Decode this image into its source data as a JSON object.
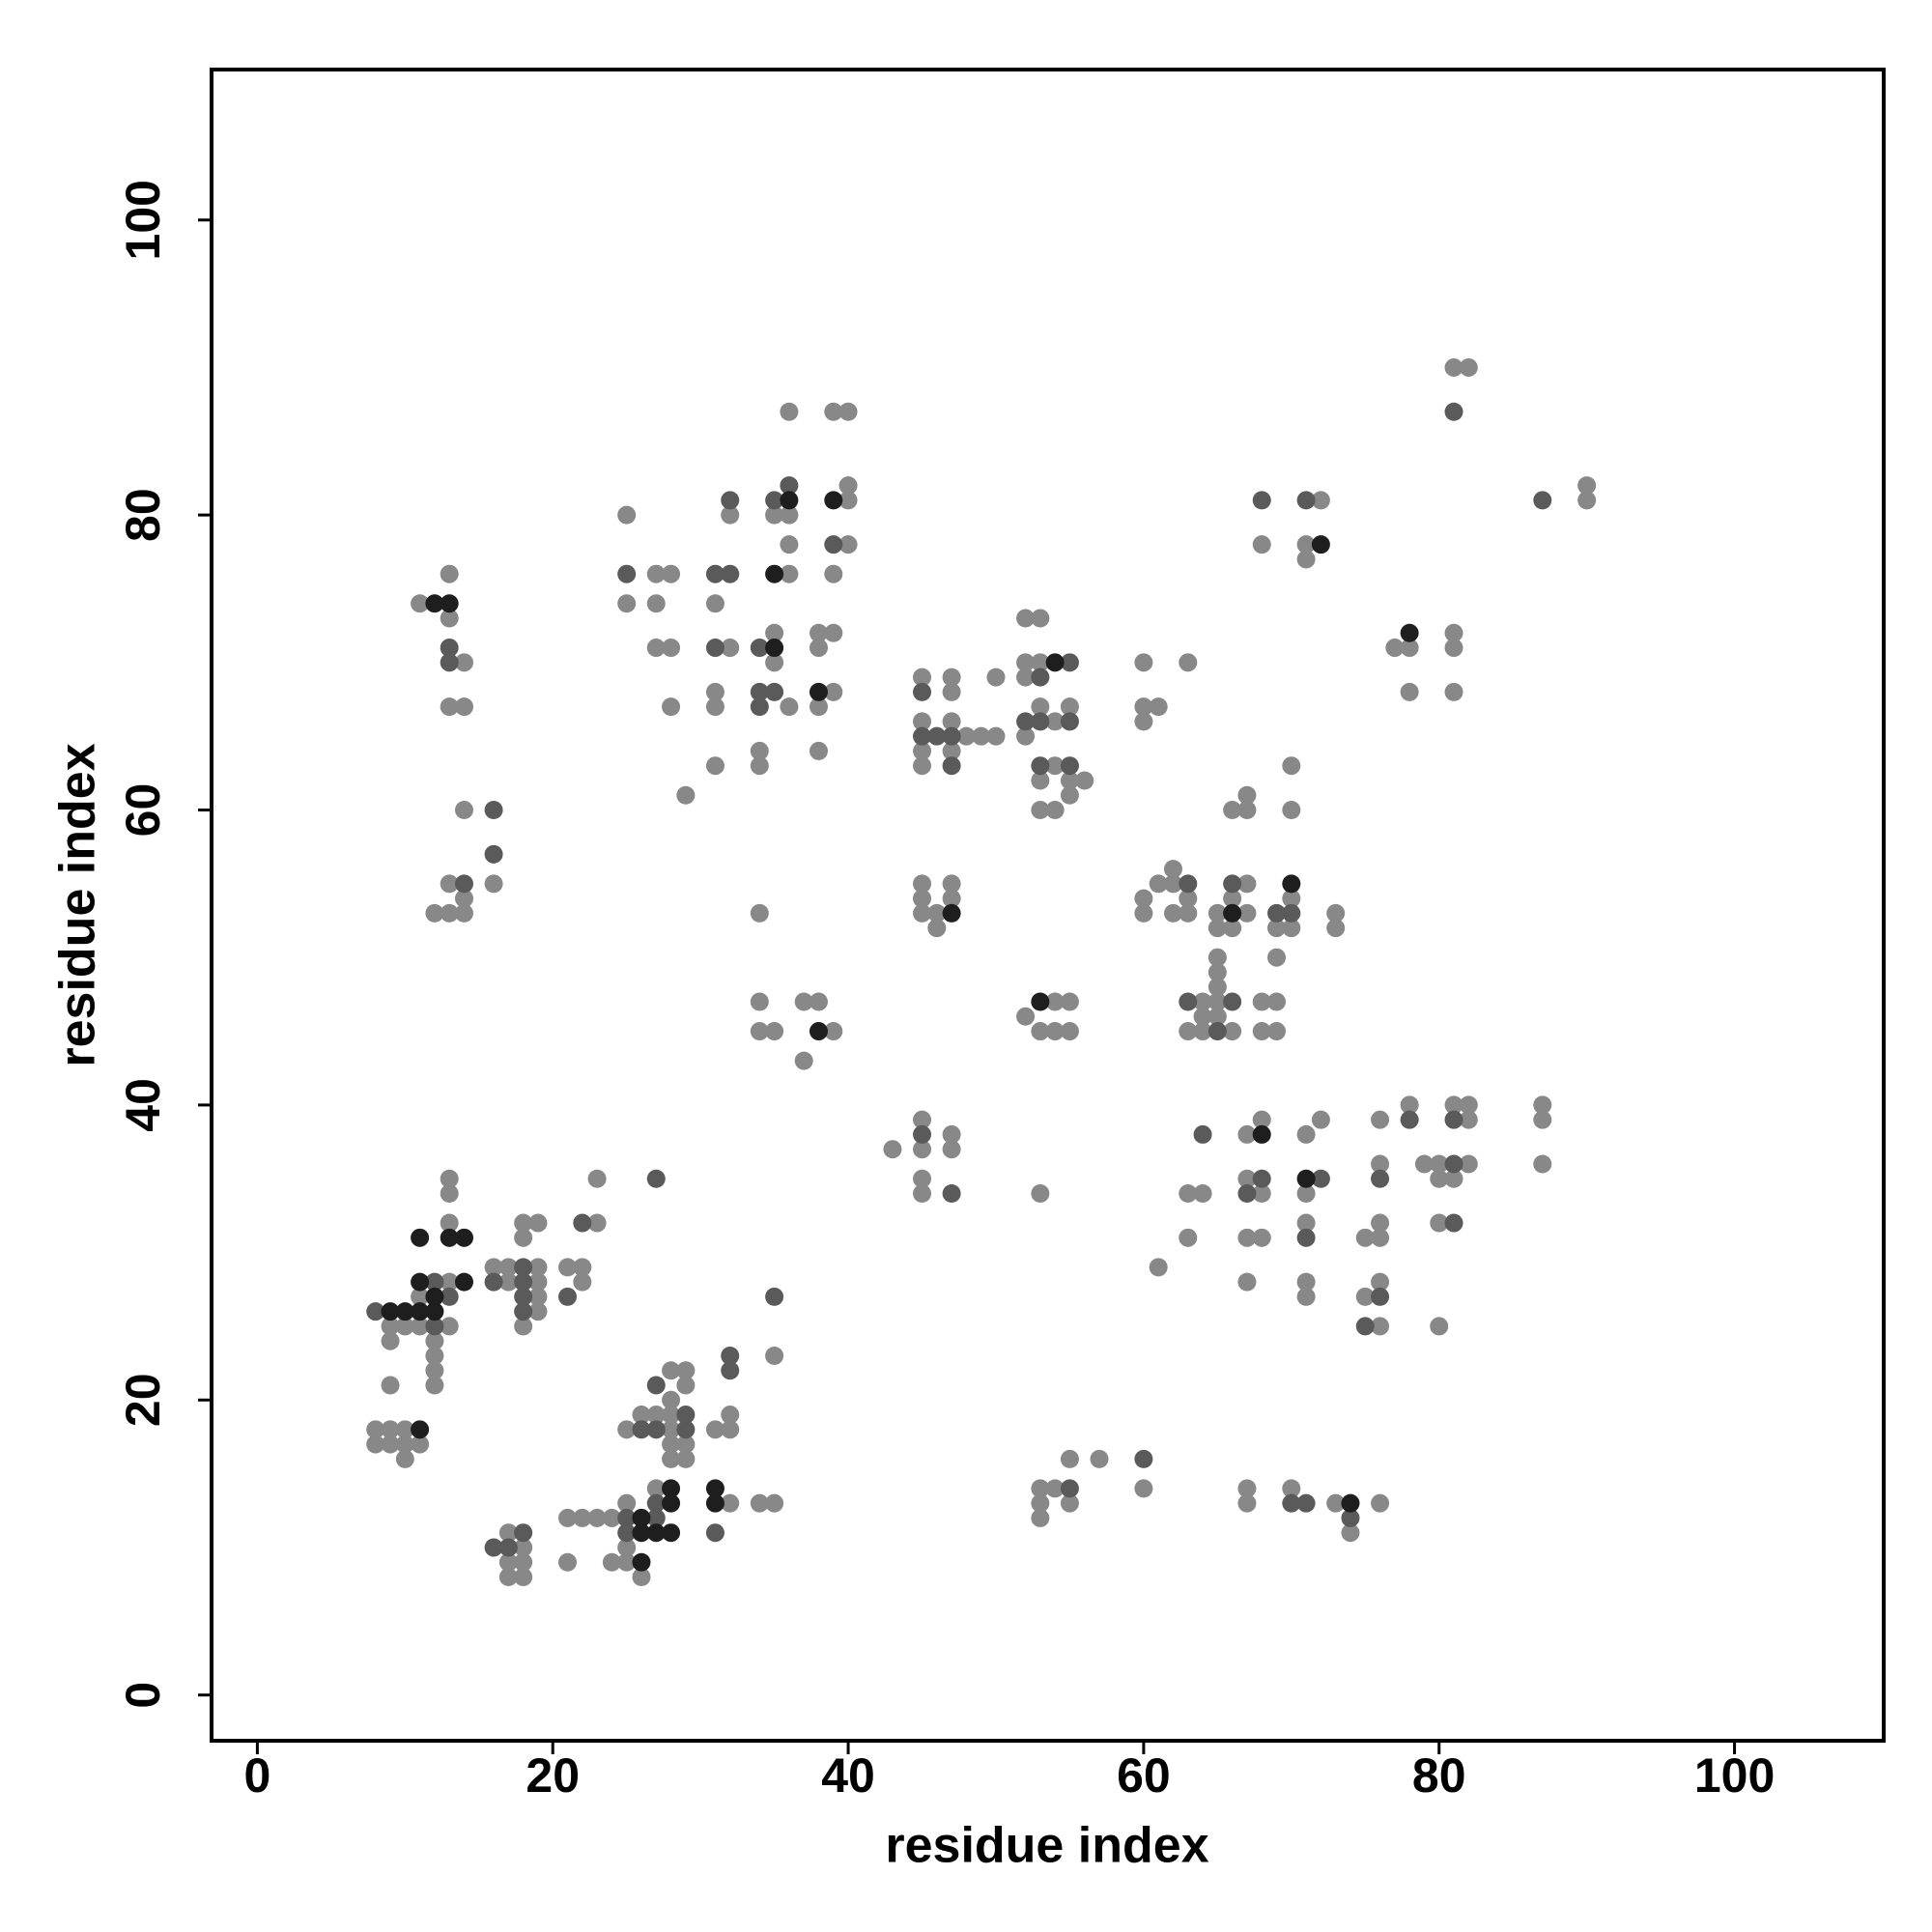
{
  "chart_data": {
    "type": "scatter",
    "xlabel": "residue index",
    "ylabel": "residue index",
    "xlim": [
      -3.1,
      110.1
    ],
    "ylim": [
      -3.1,
      110.2
    ],
    "xticks": [
      0,
      20,
      40,
      60,
      80,
      100
    ],
    "yticks": [
      0,
      20,
      40,
      60,
      80,
      100
    ],
    "series": [
      {
        "color": "#888888",
        "x": [
          9,
          10,
          11,
          13,
          11,
          13,
          9,
          12,
          12,
          12,
          12,
          9,
          13,
          13,
          13,
          8,
          9,
          10,
          8,
          9,
          10,
          11,
          10,
          17,
          16,
          19,
          17,
          19,
          19,
          19,
          18,
          18,
          18,
          19,
          21,
          22,
          22,
          23,
          23,
          17,
          17,
          18,
          17,
          18,
          18,
          21,
          21,
          22,
          23,
          24,
          24,
          25,
          25,
          25,
          26,
          27,
          25,
          28,
          26,
          27,
          28,
          28,
          29,
          28,
          29,
          28,
          29,
          28,
          29,
          32,
          31,
          32,
          32,
          34,
          35,
          35,
          11,
          13,
          13,
          13,
          14,
          14,
          14,
          13,
          16,
          14,
          12,
          13,
          14,
          25,
          25,
          27,
          28,
          36,
          39,
          27,
          31,
          27,
          28,
          32,
          38,
          35,
          38,
          39,
          28,
          31,
          36,
          38,
          31,
          39,
          31,
          34,
          34,
          38,
          29,
          40,
          35,
          36,
          32,
          40,
          36,
          40,
          36,
          39,
          40,
          35,
          34,
          34,
          37,
          38,
          34,
          35,
          39,
          37,
          45,
          47,
          50,
          47,
          45,
          47,
          48,
          49,
          50,
          45,
          47,
          45,
          45,
          47,
          45,
          47,
          45,
          46,
          46,
          52,
          53,
          52,
          53,
          52,
          53,
          55,
          54,
          52,
          54,
          53,
          55,
          56,
          55,
          53,
          54,
          54,
          55,
          52,
          53,
          54,
          55,
          45,
          47,
          43,
          45,
          47,
          45,
          45,
          53,
          55,
          57,
          53,
          54,
          60,
          53,
          55,
          53,
          60,
          63,
          60,
          61,
          60,
          62,
          61,
          62,
          67,
          60,
          63,
          66,
          70,
          60,
          62,
          63,
          65,
          67,
          73,
          65,
          66,
          69,
          70,
          73,
          65,
          69,
          65,
          65,
          64,
          65,
          68,
          69,
          64,
          65,
          63,
          64,
          66,
          68,
          69,
          66,
          67,
          70,
          67,
          70,
          67,
          71,
          72,
          68,
          76,
          67,
          63,
          64,
          68,
          71,
          63,
          67,
          68,
          75,
          76,
          71,
          76,
          67,
          71,
          76,
          71,
          75,
          76,
          80,
          61,
          76,
          79,
          80,
          82,
          87,
          78,
          81,
          82,
          87,
          82,
          87,
          80,
          81,
          80,
          67,
          70,
          67,
          73,
          76,
          74,
          72,
          90,
          68,
          71,
          71,
          90,
          81,
          82,
          81,
          77,
          78,
          81,
          78,
          81
        ],
        "values": [
          25,
          25,
          25,
          25,
          27,
          28,
          24,
          24,
          23,
          22,
          21,
          21,
          32,
          34,
          35,
          18,
          18,
          18,
          17,
          17,
          17,
          17,
          16,
          29,
          29,
          29,
          28,
          28,
          27,
          26,
          25,
          31,
          32,
          32,
          29,
          29,
          28,
          32,
          35,
          11,
          9,
          9,
          8,
          8,
          10,
          9,
          12,
          12,
          12,
          12,
          9,
          9,
          10,
          13,
          8,
          14,
          18,
          18,
          19,
          19,
          19,
          17,
          17,
          16,
          16,
          20,
          21,
          22,
          22,
          13,
          18,
          18,
          19,
          13,
          13,
          23,
          74,
          76,
          73,
          67,
          67,
          70,
          60,
          55,
          55,
          54,
          53,
          53,
          53,
          80,
          74,
          76,
          76,
          76,
          76,
          74,
          74,
          71,
          71,
          71,
          71,
          72,
          72,
          72,
          67,
          67,
          67,
          67,
          68,
          68,
          63,
          63,
          64,
          64,
          61,
          81,
          80,
          80,
          80,
          82,
          78,
          78,
          87,
          87,
          87,
          70,
          53,
          47,
          47,
          47,
          45,
          45,
          45,
          43,
          69,
          69,
          69,
          68,
          66,
          66,
          65,
          65,
          65,
          64,
          64,
          63,
          55,
          55,
          54,
          54,
          53,
          53,
          52,
          73,
          73,
          70,
          70,
          69,
          67,
          67,
          66,
          65,
          63,
          62,
          62,
          62,
          61,
          60,
          60,
          47,
          47,
          46,
          45,
          45,
          45,
          39,
          38,
          37,
          37,
          37,
          35,
          34,
          34,
          16,
          16,
          14,
          14,
          14,
          13,
          13,
          12,
          70,
          70,
          67,
          67,
          66,
          56,
          55,
          55,
          55,
          54,
          54,
          54,
          54,
          53,
          53,
          53,
          53,
          53,
          53,
          52,
          52,
          52,
          52,
          52,
          50,
          50,
          49,
          48,
          47,
          47,
          47,
          47,
          46,
          46,
          45,
          45,
          45,
          45,
          45,
          60,
          60,
          60,
          61,
          63,
          38,
          38,
          39,
          39,
          39,
          35,
          34,
          34,
          34,
          34,
          31,
          31,
          31,
          31,
          31,
          32,
          32,
          28,
          28,
          28,
          27,
          27,
          25,
          25,
          29,
          36,
          36,
          36,
          36,
          36,
          40,
          40,
          40,
          40,
          39,
          39,
          35,
          35,
          32,
          14,
          14,
          13,
          13,
          13,
          11,
          81,
          81,
          78,
          78,
          77,
          82,
          90,
          90,
          72,
          71,
          71,
          71,
          68,
          68
        ]
      },
      {
        "color": "#5a5a5a",
        "x": [
          8,
          12,
          13,
          12,
          13,
          13,
          14,
          16,
          16,
          16,
          18,
          18,
          18,
          18,
          21,
          22,
          17,
          18,
          16,
          25,
          27,
          25,
          27,
          27,
          26,
          27,
          29,
          29,
          32,
          32,
          31,
          27,
          35,
          31,
          34,
          34,
          35,
          34,
          32,
          35,
          36,
          39,
          31,
          32,
          25,
          45,
          47,
          46,
          45,
          47,
          45,
          47,
          53,
          53,
          53,
          55,
          55,
          55,
          52,
          63,
          63,
          65,
          66,
          66,
          69,
          70,
          64,
          67,
          68,
          71,
          72,
          76,
          75,
          76,
          81,
          81,
          81,
          78,
          68,
          71,
          81,
          87,
          55,
          60,
          70,
          71,
          74
        ],
        "values": [
          26,
          25,
          27,
          28,
          71,
          70,
          55,
          60,
          57,
          28,
          29,
          27,
          26,
          28,
          27,
          32,
          10,
          11,
          10,
          12,
          12,
          11,
          13,
          21,
          18,
          18,
          19,
          18,
          23,
          22,
          11,
          35,
          27,
          71,
          71,
          67,
          68,
          68,
          81,
          81,
          82,
          78,
          76,
          76,
          76,
          65,
          65,
          65,
          68,
          63,
          38,
          34,
          69,
          66,
          63,
          70,
          63,
          66,
          66,
          55,
          47,
          45,
          47,
          55,
          53,
          53,
          38,
          34,
          35,
          31,
          35,
          35,
          25,
          27,
          36,
          39,
          32,
          39,
          81,
          81,
          87,
          81,
          14,
          16,
          13,
          13,
          12
        ]
      },
      {
        "color": "#1e1e1e",
        "x": [
          9,
          10,
          11,
          12,
          11,
          13,
          14,
          11,
          12,
          14,
          12,
          13,
          11,
          26,
          27,
          28,
          28,
          28,
          31,
          31,
          26,
          26,
          35,
          35,
          36,
          38,
          39,
          38,
          47,
          53,
          54,
          68,
          72,
          78,
          71,
          70,
          66,
          74
        ],
        "values": [
          26,
          26,
          26,
          26,
          31,
          31,
          31,
          28,
          27,
          28,
          74,
          74,
          18,
          11,
          11,
          11,
          14,
          13,
          14,
          13,
          12,
          9,
          76,
          71,
          81,
          68,
          81,
          45,
          53,
          47,
          70,
          38,
          78,
          72,
          35,
          55,
          53,
          13
        ]
      }
    ]
  }
}
